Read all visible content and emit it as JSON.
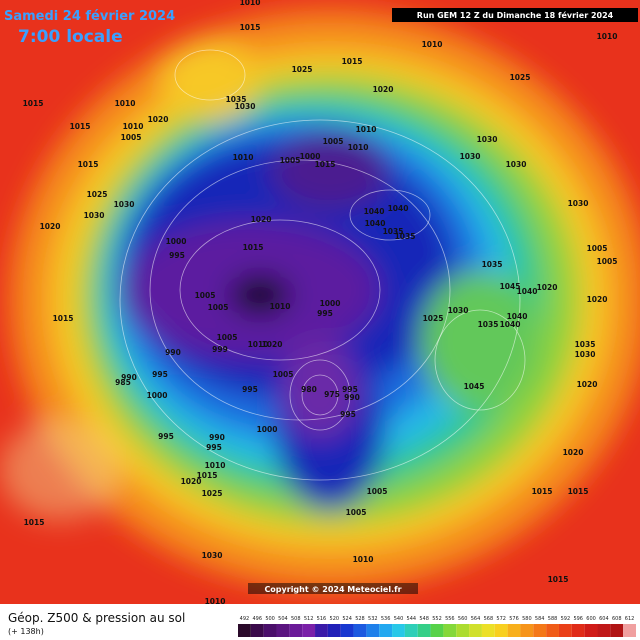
{
  "header": {
    "date": "Samedi 24 février 2024",
    "time": "7:00 locale",
    "run": "Run GEM 12 Z du Dimanche 18 février 2024"
  },
  "map": {
    "pressure_labels": [
      1010,
      1015,
      1010,
      1010,
      1015,
      1025,
      1025,
      1015,
      1010,
      1035,
      1030,
      1020,
      1015,
      1010,
      1005,
      1020,
      1010,
      1005,
      1010,
      1030,
      1010,
      1005,
      1000,
      1015,
      1030,
      1030,
      1015,
      1025,
      1030,
      1030,
      1030,
      1040,
      1040,
      1040,
      1035,
      1035,
      1020,
      1020,
      1000,
      995,
      1015,
      1005,
      1005,
      1035,
      1045,
      1040,
      1020,
      1020,
      1005,
      1005,
      1010,
      1000,
      995,
      1030,
      1025,
      1015,
      1040,
      1035,
      1040,
      1005,
      1010,
      1020,
      999,
      990,
      1035,
      1030,
      990,
      995,
      985,
      1005,
      980,
      975,
      995,
      990,
      995,
      1045,
      1020,
      1000,
      1000,
      995,
      995,
      990,
      995,
      1020,
      1010,
      1015,
      1020,
      1025,
      1005,
      1015,
      1015,
      1005,
      1015,
      1030,
      1010,
      1015,
      1010
    ]
  },
  "footer": {
    "title": "Géop. Z500 & pression au sol",
    "lead": "(+ 138h)",
    "copyright": "Copyright © 2024 Meteociel.fr"
  },
  "legend": {
    "ticks": [
      492,
      496,
      500,
      504,
      508,
      512,
      516,
      520,
      524,
      528,
      532,
      536,
      540,
      544,
      548,
      552,
      556,
      560,
      564,
      568,
      572,
      576,
      580,
      584,
      588,
      592,
      596,
      600,
      604,
      608,
      612
    ]
  }
}
